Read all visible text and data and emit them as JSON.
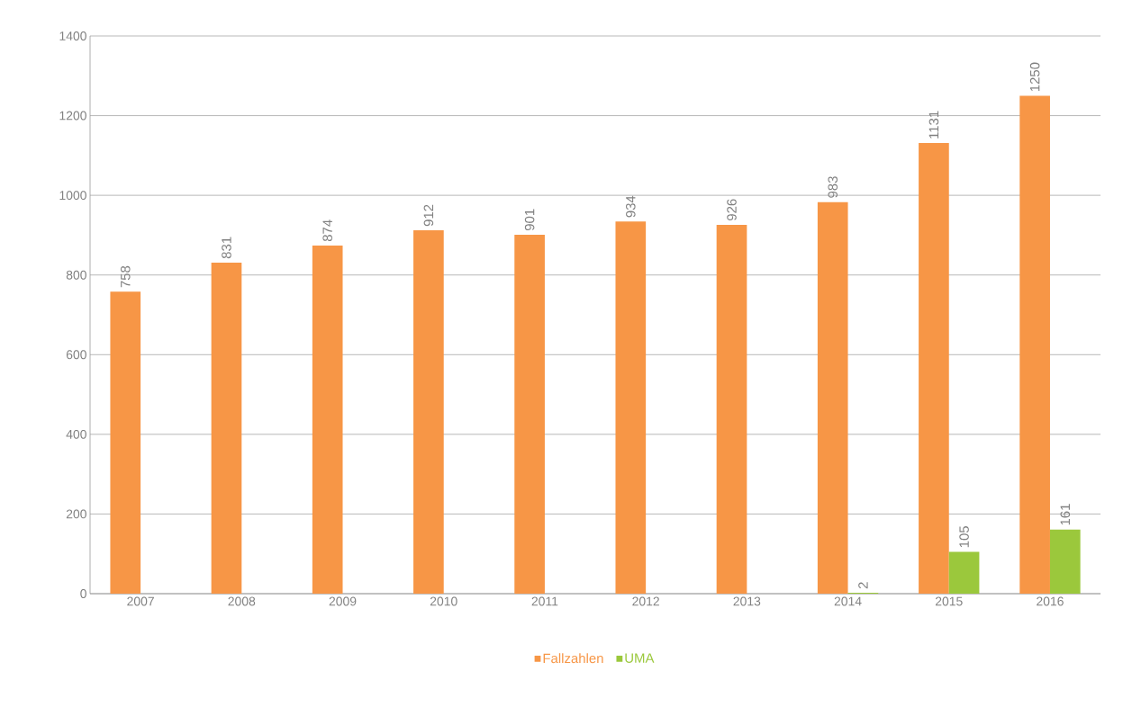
{
  "chart_data": {
    "type": "bar",
    "categories": [
      "2007",
      "2008",
      "2009",
      "2010",
      "2011",
      "2012",
      "2013",
      "2014",
      "2015",
      "2016"
    ],
    "series": [
      {
        "name": "Fallzahlen",
        "color": "#f79646",
        "values": [
          758,
          831,
          874,
          912,
          901,
          934,
          926,
          983,
          1131,
          1250
        ]
      },
      {
        "name": "UMA",
        "color": "#9bc83c",
        "values": [
          null,
          null,
          null,
          null,
          null,
          null,
          null,
          2,
          105,
          161
        ]
      }
    ],
    "ylim": [
      0,
      1400
    ],
    "yticks": [
      0,
      200,
      400,
      600,
      800,
      1000,
      1200,
      1400
    ],
    "grid": "y",
    "legend": "bottom",
    "data_labels": true
  }
}
